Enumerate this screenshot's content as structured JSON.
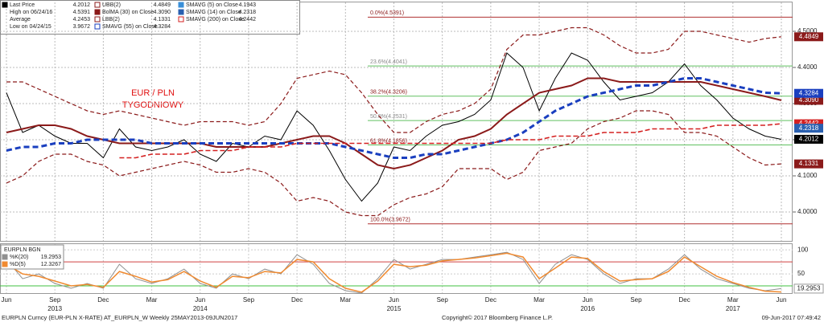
{
  "chart_data": {
    "type": "line",
    "annotation": [
      "EUR / PLN",
      "TYGODNIOWY"
    ],
    "categories": [
      "Jun",
      null,
      null,
      "Sep",
      null,
      null,
      "Dec",
      null,
      null,
      "Mar",
      null,
      null,
      "Jun",
      null,
      null,
      "Sep",
      null,
      null,
      "Dec",
      null,
      null,
      "Mar",
      null,
      null,
      "Jun",
      null,
      null,
      "Sep",
      null,
      null,
      "Dec",
      null,
      null,
      "Mar",
      null,
      null,
      "Jun",
      null,
      null,
      "Sep",
      null,
      null,
      "Dec",
      null,
      null,
      "Mar",
      null,
      null,
      "Jun"
    ],
    "years": [
      null,
      null,
      null,
      "2013",
      null,
      null,
      null,
      null,
      null,
      null,
      null,
      null,
      "2014",
      null,
      null,
      null,
      null,
      null,
      null,
      null,
      null,
      null,
      null,
      null,
      "2015",
      null,
      null,
      null,
      null,
      null,
      null,
      null,
      null,
      null,
      null,
      null,
      "2016",
      null,
      null,
      null,
      null,
      null,
      null,
      null,
      null,
      "2017",
      null,
      null,
      null
    ],
    "ylim": [
      3.92,
      4.58
    ],
    "yticks": [
      {
        "value": 4,
        "label": "4.0000"
      },
      {
        "value": 4.1,
        "label": "4.1000"
      },
      {
        "value": 4.2,
        "label": "4.2000"
      },
      {
        "value": 4.3,
        "label": "4.3000"
      },
      {
        "value": 4.4,
        "label": "4.4000"
      },
      {
        "value": 4.5,
        "label": "4.5000"
      }
    ],
    "grid": true,
    "stats": [
      {
        "name": "High on 06/24/16",
        "value": "4.5391"
      },
      {
        "name": "Average",
        "value": "4.2453"
      },
      {
        "name": "Low on 04/24/15",
        "value": "3.9672"
      }
    ],
    "series": [
      {
        "name": "Last Price",
        "color": "#000000",
        "style": "solid",
        "last_label": "4.2012",
        "values": [
          4.33,
          4.22,
          4.24,
          4.21,
          4.19,
          4.19,
          4.15,
          4.23,
          4.18,
          4.17,
          4.18,
          4.2,
          4.16,
          4.14,
          4.19,
          4.18,
          4.21,
          4.2,
          4.28,
          4.24,
          4.17,
          4.09,
          4.03,
          4.08,
          4.18,
          4.17,
          4.21,
          4.24,
          4.25,
          4.27,
          4.31,
          4.44,
          4.4,
          4.28,
          4.37,
          4.44,
          4.42,
          4.36,
          4.31,
          4.32,
          4.33,
          4.36,
          4.41,
          4.35,
          4.31,
          4.26,
          4.23,
          4.21,
          4.2012
        ]
      },
      {
        "name": "UBB(2)",
        "color": "#8b1a1a",
        "style": "dashed",
        "last_label": "4.4849",
        "values": [
          4.36,
          4.36,
          4.34,
          4.32,
          4.3,
          4.28,
          4.27,
          4.28,
          4.27,
          4.26,
          4.25,
          4.24,
          4.25,
          4.25,
          4.25,
          4.24,
          4.25,
          4.3,
          4.37,
          4.38,
          4.39,
          4.38,
          4.33,
          4.27,
          4.22,
          4.22,
          4.25,
          4.27,
          4.28,
          4.3,
          4.34,
          4.45,
          4.49,
          4.49,
          4.5,
          4.51,
          4.51,
          4.49,
          4.46,
          4.44,
          4.44,
          4.45,
          4.5,
          4.5,
          4.49,
          4.48,
          4.47,
          4.48,
          4.4849
        ]
      },
      {
        "name": "BolMA (30) on Close",
        "color": "#8b1a1a",
        "style": "thick",
        "last_label": "4.3090",
        "values": [
          4.22,
          4.23,
          4.24,
          4.24,
          4.23,
          4.21,
          4.2,
          4.19,
          4.19,
          4.19,
          4.19,
          4.19,
          4.19,
          4.18,
          4.18,
          4.18,
          4.18,
          4.19,
          4.2,
          4.21,
          4.21,
          4.19,
          4.16,
          4.13,
          4.12,
          4.13,
          4.15,
          4.17,
          4.2,
          4.21,
          4.23,
          4.27,
          4.3,
          4.33,
          4.34,
          4.35,
          4.37,
          4.37,
          4.36,
          4.36,
          4.36,
          4.36,
          4.36,
          4.36,
          4.35,
          4.34,
          4.33,
          4.32,
          4.309
        ]
      },
      {
        "name": "LBB(2)",
        "color": "#8b1a1a",
        "style": "dashed",
        "last_label": "4.1331",
        "values": [
          4.08,
          4.1,
          4.14,
          4.16,
          4.16,
          4.14,
          4.13,
          4.1,
          4.11,
          4.12,
          4.13,
          4.14,
          4.13,
          4.11,
          4.11,
          4.12,
          4.11,
          4.08,
          4.03,
          4.04,
          4.03,
          4.0,
          3.99,
          3.99,
          4.02,
          4.04,
          4.05,
          4.07,
          4.12,
          4.12,
          4.12,
          4.09,
          4.11,
          4.17,
          4.18,
          4.19,
          4.23,
          4.25,
          4.26,
          4.28,
          4.28,
          4.27,
          4.22,
          4.22,
          4.21,
          4.18,
          4.15,
          4.13,
          4.1331
        ]
      },
      {
        "name": "SMAVG (55) on Close",
        "color": "#1a3fbf",
        "style": "bluedash",
        "last_label": "4.3284",
        "values": [
          4.17,
          4.18,
          4.18,
          4.19,
          4.19,
          4.2,
          4.2,
          4.2,
          4.2,
          4.19,
          4.19,
          4.19,
          4.19,
          4.19,
          4.19,
          4.19,
          4.19,
          4.19,
          4.19,
          4.19,
          4.19,
          4.18,
          4.17,
          4.16,
          4.15,
          4.15,
          4.16,
          4.16,
          4.17,
          4.18,
          4.19,
          4.2,
          4.22,
          4.25,
          4.28,
          4.3,
          4.32,
          4.33,
          4.34,
          4.35,
          4.35,
          4.36,
          4.37,
          4.37,
          4.36,
          4.35,
          4.34,
          4.33,
          4.3284
        ]
      },
      {
        "name": "SMAVG (200) on Close",
        "color": "#d42020",
        "style": "reddash",
        "last_label": "4.2442",
        "values": [
          null,
          null,
          null,
          null,
          null,
          null,
          null,
          4.15,
          4.15,
          4.16,
          4.16,
          4.16,
          4.17,
          4.17,
          4.17,
          4.18,
          4.18,
          4.18,
          4.19,
          4.19,
          4.19,
          4.19,
          4.19,
          4.19,
          4.19,
          4.19,
          4.19,
          4.19,
          4.19,
          4.19,
          4.19,
          4.2,
          4.2,
          4.2,
          4.21,
          4.21,
          4.21,
          4.22,
          4.22,
          4.22,
          4.23,
          4.23,
          4.23,
          4.23,
          4.24,
          4.24,
          4.24,
          4.24,
          4.2442
        ]
      }
    ],
    "extra_legend": [
      {
        "name": "SMAVG (5) on Close",
        "color": "#3a8fd8",
        "label": "4.1943"
      },
      {
        "name": "SMAVG (14) on Close",
        "color": "#2a60b0",
        "label": "4.2318",
        "value": 4.2318
      }
    ],
    "fib_levels": [
      {
        "value": 4.5391,
        "label": "0.0%(4.5391)"
      },
      {
        "value": 4.4041,
        "label": "23.6%(4.4041)"
      },
      {
        "value": 4.3206,
        "label": "38.2%(4.3206)"
      },
      {
        "value": 4.2531,
        "label": "50.0%(4.2531)"
      },
      {
        "value": 4.1856,
        "label": "61.8%(4.1856)"
      },
      {
        "value": 3.9672,
        "label": "100.0%(3.9672)"
      }
    ],
    "lower": {
      "title": "EURPLN BGN",
      "ylim": [
        10,
        112
      ],
      "yticks": [
        50,
        100
      ],
      "ref_lines": [
        {
          "value": 75,
          "color": "#d04040"
        },
        {
          "value": 25,
          "color": "#40c040"
        }
      ],
      "series": [
        {
          "name": "%K(20)",
          "color": "#909090",
          "last_label": "19.2953",
          "values": [
            80,
            40,
            50,
            30,
            20,
            30,
            20,
            70,
            40,
            30,
            40,
            60,
            30,
            20,
            50,
            40,
            60,
            50,
            90,
            70,
            30,
            15,
            10,
            40,
            80,
            60,
            70,
            80,
            80,
            85,
            90,
            95,
            80,
            30,
            70,
            90,
            80,
            50,
            30,
            40,
            40,
            60,
            90,
            60,
            40,
            30,
            20,
            15,
            19.2953
          ]
        },
        {
          "name": "%D(5)",
          "color": "#f08a30",
          "last_label": "12.3267",
          "values": [
            70,
            50,
            45,
            35,
            25,
            28,
            22,
            55,
            45,
            33,
            38,
            55,
            35,
            22,
            45,
            42,
            55,
            52,
            80,
            75,
            40,
            20,
            12,
            35,
            70,
            65,
            68,
            77,
            80,
            83,
            88,
            93,
            85,
            40,
            62,
            85,
            82,
            55,
            35,
            38,
            40,
            55,
            85,
            65,
            45,
            32,
            22,
            14,
            12.3267
          ]
        }
      ]
    },
    "footer": {
      "left": "EURPLN Curncy (EUR-PLN X-RATE) AT_EURPLN_W  Weekly 25MAY2013-09JUN2017",
      "center": "Copyright© 2017 Bloomberg Finance L.P.",
      "right": "09-Jun-2017 07:49:42"
    }
  }
}
